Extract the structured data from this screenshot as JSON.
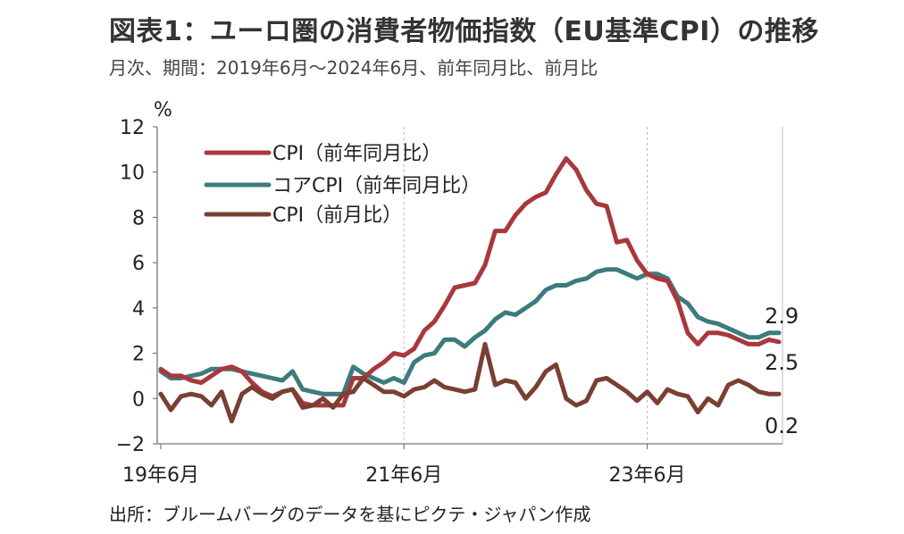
{
  "title": "図表1：ユーロ圏の消費者物価指数（EU基準CPI）の推移",
  "subtitle": "月次、期間：2019年6月～2024年6月、前年同月比、前月比",
  "source": "出所：ブルームバーグのデータを基にピクテ・ジャパン作成",
  "chart_data": {
    "type": "line",
    "ylabel": "%",
    "ylim": [
      -2,
      12
    ],
    "yticks": [
      "12",
      "10",
      "8",
      "6",
      "4",
      "2",
      "0",
      "−2"
    ],
    "xtick_labels": [
      "19年6月",
      "21年6月",
      "23年6月"
    ],
    "x_start": "2019-06",
    "x_end": "2024-06",
    "grid": "vertical",
    "legend_position": "top-left",
    "colors": {
      "cpi_yoy": "#a8383c",
      "core_yoy": "#3d7b7d",
      "cpi_mom": "#7a3f33"
    },
    "series": [
      {
        "name": "CPI（前年同月比）",
        "end_label": "2.5",
        "values": [
          1.3,
          1.0,
          1.0,
          0.8,
          0.7,
          1.0,
          1.3,
          1.4,
          1.2,
          0.7,
          0.3,
          0.1,
          0.3,
          0.4,
          -0.2,
          -0.3,
          -0.3,
          -0.3,
          -0.3,
          0.9,
          0.9,
          1.3,
          1.6,
          2.0,
          1.9,
          2.2,
          3.0,
          3.4,
          4.1,
          4.9,
          5.0,
          5.1,
          5.9,
          7.4,
          7.4,
          8.1,
          8.6,
          8.9,
          9.1,
          9.9,
          10.6,
          10.1,
          9.2,
          8.6,
          8.5,
          6.9,
          7.0,
          6.1,
          5.5,
          5.3,
          5.2,
          4.3,
          2.9,
          2.4,
          2.9,
          2.9,
          2.8,
          2.6,
          2.4,
          2.4,
          2.6,
          2.5
        ]
      },
      {
        "name": "コアCPI（前年同月比）",
        "end_label": "2.9",
        "values": [
          1.2,
          0.9,
          0.9,
          1.0,
          1.1,
          1.3,
          1.3,
          1.3,
          1.2,
          1.1,
          1.0,
          0.9,
          0.8,
          1.2,
          0.4,
          0.3,
          0.2,
          0.2,
          0.2,
          1.4,
          1.1,
          0.9,
          0.7,
          0.9,
          0.7,
          1.6,
          1.9,
          2.0,
          2.6,
          2.6,
          2.3,
          2.7,
          3.0,
          3.5,
          3.8,
          3.7,
          4.0,
          4.3,
          4.8,
          5.0,
          5.0,
          5.2,
          5.3,
          5.6,
          5.7,
          5.7,
          5.5,
          5.3,
          5.5,
          5.5,
          5.3,
          4.5,
          4.2,
          3.6,
          3.4,
          3.3,
          3.1,
          2.9,
          2.7,
          2.7,
          2.9,
          2.9
        ]
      },
      {
        "name": "CPI（前月比）",
        "end_label": "0.2",
        "values": [
          0.2,
          -0.5,
          0.1,
          0.2,
          0.1,
          -0.3,
          0.3,
          -1.0,
          0.2,
          0.5,
          0.2,
          0.0,
          0.3,
          0.4,
          -0.4,
          -0.3,
          0.0,
          -0.4,
          0.2,
          0.3,
          0.9,
          0.6,
          0.3,
          0.3,
          0.1,
          0.4,
          0.5,
          0.8,
          0.5,
          0.4,
          0.3,
          0.4,
          2.4,
          0.6,
          0.8,
          0.7,
          0.0,
          0.5,
          1.2,
          1.5,
          0.0,
          -0.3,
          -0.1,
          0.8,
          0.9,
          0.6,
          0.3,
          -0.1,
          0.3,
          -0.2,
          0.4,
          0.2,
          0.1,
          -0.6,
          0.0,
          -0.3,
          0.6,
          0.8,
          0.6,
          0.3,
          0.2,
          0.2
        ]
      }
    ]
  }
}
